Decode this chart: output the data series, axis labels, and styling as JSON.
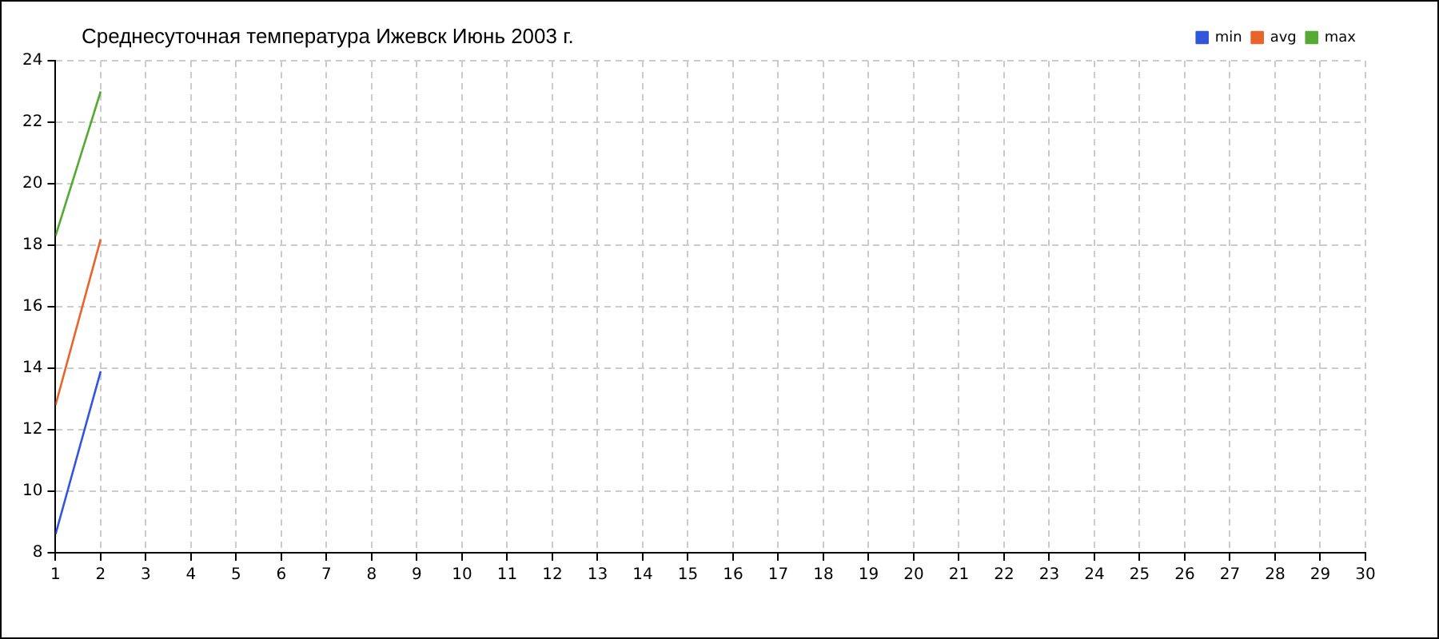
{
  "chart_data": {
    "type": "line",
    "title": "Среднесуточная температура Ижевск  Июнь 2003 г.",
    "x": [
      1,
      2
    ],
    "series": [
      {
        "name": "min",
        "color": "#3355dd",
        "values": [
          8.6,
          13.9
        ]
      },
      {
        "name": "avg",
        "color": "#e8642a",
        "values": [
          12.8,
          18.2
        ]
      },
      {
        "name": "max",
        "color": "#55aa33",
        "values": [
          18.3,
          23.0
        ]
      }
    ],
    "xlim": [
      1,
      30
    ],
    "xticks": [
      1,
      2,
      3,
      4,
      5,
      6,
      7,
      8,
      9,
      10,
      11,
      12,
      13,
      14,
      15,
      16,
      17,
      18,
      19,
      20,
      21,
      22,
      23,
      24,
      25,
      26,
      27,
      28,
      29,
      30
    ],
    "ylim": [
      8,
      24
    ],
    "yticks": [
      8,
      10,
      12,
      14,
      16,
      18,
      20,
      22,
      24
    ],
    "grid": true,
    "legend": "top right",
    "marker": "none",
    "line_style": "solid"
  }
}
